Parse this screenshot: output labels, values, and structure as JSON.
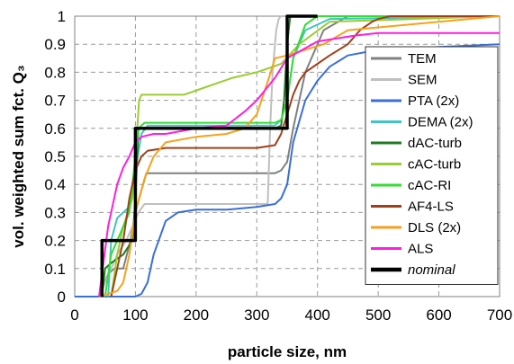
{
  "chart_data": {
    "type": "line",
    "xlabel": "particle size, nm",
    "ylabel": "vol. weighted sum fct. Q₃",
    "xlim": [
      0,
      700
    ],
    "ylim": [
      0,
      1
    ],
    "xticks": [
      "0",
      "100",
      "200",
      "300",
      "400",
      "500",
      "600",
      "700"
    ],
    "yticks": [
      "0",
      "0.1",
      "0.2",
      "0.3",
      "0.4",
      "0.5",
      "0.6",
      "0.7",
      "0.8",
      "0.9",
      "1"
    ],
    "grid": "dashed",
    "legend_position": "right",
    "series": [
      {
        "name": "TEM",
        "color": "#808080",
        "width": 2,
        "x": [
          40,
          55,
          65,
          80,
          92,
          100,
          110,
          118,
          130,
          200,
          300,
          330,
          340,
          350,
          360,
          380,
          410,
          450,
          700
        ],
        "y": [
          0,
          0.08,
          0.1,
          0.1,
          0.2,
          0.3,
          0.38,
          0.44,
          0.44,
          0.44,
          0.44,
          0.44,
          0.45,
          0.48,
          0.6,
          0.8,
          0.95,
          1.0,
          1.0
        ]
      },
      {
        "name": "SEM",
        "color": "#bfbfbf",
        "width": 2,
        "x": [
          40,
          60,
          70,
          85,
          95,
          105,
          115,
          300,
          318,
          322,
          326,
          332,
          336,
          340,
          700
        ],
        "y": [
          0,
          0.1,
          0.15,
          0.2,
          0.25,
          0.3,
          0.33,
          0.33,
          0.33,
          0.6,
          0.8,
          0.95,
          0.99,
          1.0,
          1.0
        ]
      },
      {
        "name": "PTA (2x)",
        "color": "#3a6fd8",
        "width": 2,
        "x": [
          0,
          10,
          100,
          110,
          120,
          130,
          150,
          170,
          200,
          250,
          300,
          330,
          340,
          350,
          360,
          380,
          400,
          420,
          450,
          500,
          600,
          700
        ],
        "y": [
          0,
          0,
          0,
          0.01,
          0.05,
          0.15,
          0.27,
          0.3,
          0.31,
          0.31,
          0.32,
          0.33,
          0.35,
          0.4,
          0.55,
          0.7,
          0.77,
          0.82,
          0.86,
          0.88,
          0.89,
          0.9
        ]
      },
      {
        "name": "DEMA (2x)",
        "color": "#40c4c4",
        "width": 2,
        "x": [
          55,
          60,
          70,
          80,
          90,
          100,
          110,
          120,
          200,
          300,
          330,
          340,
          350,
          360,
          380,
          420,
          700
        ],
        "y": [
          0,
          0.2,
          0.28,
          0.3,
          0.32,
          0.45,
          0.58,
          0.61,
          0.61,
          0.61,
          0.61,
          0.63,
          0.7,
          0.85,
          0.95,
          0.99,
          1.0
        ]
      },
      {
        "name": "dAC-turb",
        "color": "#1f7a1f",
        "width": 2,
        "x": [
          45,
          50,
          60,
          80,
          95,
          100,
          105,
          300,
          330,
          340,
          345,
          350,
          355,
          700
        ],
        "y": [
          0,
          0.1,
          0.12,
          0.15,
          0.2,
          0.35,
          0.6,
          0.6,
          0.6,
          0.61,
          0.7,
          0.9,
          1.0,
          1.0
        ]
      },
      {
        "name": "cAC-turb",
        "color": "#9acd32",
        "width": 2,
        "x": [
          60,
          70,
          80,
          95,
          100,
          103,
          106,
          110,
          180,
          220,
          260,
          300,
          340,
          370,
          420,
          700
        ],
        "y": [
          0,
          0.15,
          0.25,
          0.35,
          0.5,
          0.6,
          0.7,
          0.72,
          0.72,
          0.75,
          0.78,
          0.8,
          0.83,
          0.9,
          0.98,
          1.0
        ]
      },
      {
        "name": "cAC-RI",
        "color": "#33dd33",
        "width": 2,
        "x": [
          50,
          60,
          70,
          90,
          100,
          105,
          115,
          300,
          330,
          340,
          350,
          360,
          380,
          400,
          700
        ],
        "y": [
          0,
          0.15,
          0.2,
          0.3,
          0.5,
          0.6,
          0.62,
          0.62,
          0.62,
          0.63,
          0.7,
          0.85,
          0.97,
          1.0,
          1.0
        ]
      },
      {
        "name": "AF4-LS",
        "color": "#a0401a",
        "width": 2,
        "x": [
          60,
          70,
          80,
          90,
          100,
          110,
          120,
          150,
          200,
          300,
          330,
          340,
          350,
          360,
          370,
          380,
          400,
          420,
          450,
          470,
          490,
          500,
          520,
          700
        ],
        "y": [
          0,
          0.1,
          0.2,
          0.35,
          0.45,
          0.5,
          0.52,
          0.53,
          0.53,
          0.53,
          0.54,
          0.58,
          0.65,
          0.72,
          0.77,
          0.8,
          0.83,
          0.86,
          0.9,
          0.95,
          0.98,
          0.99,
          1.0,
          1.0
        ]
      },
      {
        "name": "DLS (2x)",
        "color": "#f5a21b",
        "width": 2,
        "x": [
          40,
          55,
          70,
          80,
          90,
          100,
          115,
          130,
          150,
          200,
          250,
          280,
          300,
          320,
          330,
          350,
          380,
          410,
          450,
          700
        ],
        "y": [
          0,
          0.01,
          0.02,
          0.05,
          0.15,
          0.3,
          0.42,
          0.5,
          0.55,
          0.57,
          0.58,
          0.6,
          0.65,
          0.78,
          0.85,
          0.86,
          0.88,
          0.9,
          0.95,
          1.0
        ]
      },
      {
        "name": "ALS",
        "color": "#ff1ee0",
        "width": 2,
        "x": [
          40,
          55,
          70,
          80,
          90,
          100,
          110,
          130,
          150,
          200,
          250,
          280,
          300,
          330,
          350,
          400,
          460,
          500,
          700
        ],
        "y": [
          0,
          0.25,
          0.4,
          0.46,
          0.5,
          0.55,
          0.57,
          0.58,
          0.58,
          0.6,
          0.61,
          0.66,
          0.7,
          0.78,
          0.85,
          0.91,
          0.93,
          0.94,
          0.94
        ]
      },
      {
        "name": "nominal",
        "color": "#000000",
        "width": 3.5,
        "italic": true,
        "x": [
          45,
          45,
          100,
          100,
          350,
          350,
          400
        ],
        "y": [
          0,
          0.2,
          0.2,
          0.6,
          0.6,
          1.0,
          1.0
        ]
      }
    ]
  }
}
